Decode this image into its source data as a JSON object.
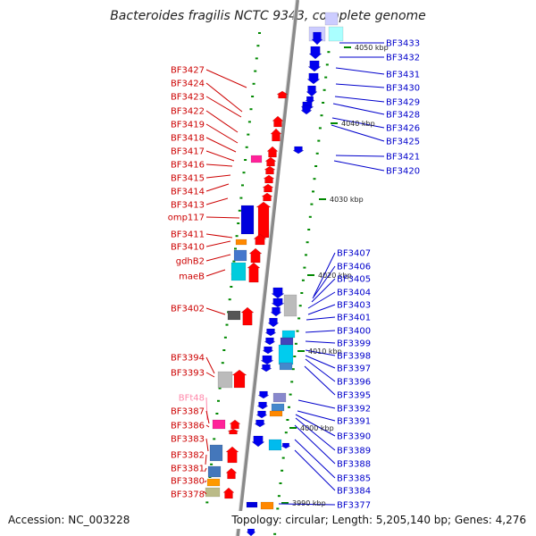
{
  "title": "Bacteroides fragilis NCTC 9343, complete genome",
  "accession": "Accession: NC_003228",
  "topology": "Topology: circular; Length: 5,205,140 bp; Genes: 4,276",
  "colors": {
    "forward_label": "#cc0000",
    "reverse_label": "#0000cc",
    "rna_label": "#ff88aa",
    "forward_gene": "#ff0000",
    "reverse_gene": "#0000ee",
    "backbone": "#888888",
    "tick": "#008800"
  },
  "ticks": [
    "4050 kbp",
    "4040 kbp",
    "4030 kbp",
    "4020 kbp",
    "4010 kbp",
    "4000 kbp",
    "3990 kbp"
  ],
  "left_labels": [
    "BF3427",
    "BF3424",
    "BF3423",
    "BF3422",
    "BF3419",
    "BF3418",
    "BF3417",
    "BF3416",
    "BF3415",
    "BF3414",
    "BF3413",
    "omp117",
    "BF3411",
    "BF3410",
    "gdhB2",
    "maeB",
    "BF3402",
    "BF3394",
    "BF3393",
    "BFt48",
    "BF3387",
    "BF3386",
    "BF3383",
    "BF3382",
    "BF3381",
    "BF3380",
    "BF3378"
  ],
  "right_labels": [
    "BF3433",
    "BF3432",
    "BF3431",
    "BF3430",
    "BF3429",
    "BF3428",
    "BF3426",
    "BF3425",
    "BF3421",
    "BF3420",
    "BF3407",
    "BF3406",
    "BF3405",
    "BF3404",
    "BF3403",
    "BF3401",
    "BF3400",
    "BF3399",
    "BF3398",
    "BF3397",
    "BF3396",
    "BF3395",
    "BF3392",
    "BF3391",
    "BF3390",
    "BF3389",
    "BF3388",
    "BF3385",
    "BF3384",
    "BF3377"
  ]
}
